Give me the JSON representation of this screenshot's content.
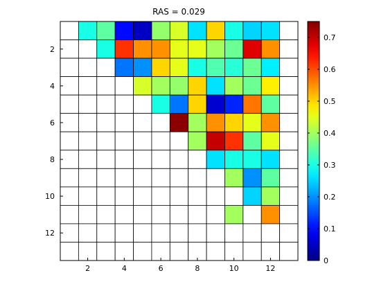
{
  "chart_data": {
    "type": "heatmap",
    "title": "RAS = 0.029",
    "n": 13,
    "x_ticks": [
      "2",
      "4",
      "6",
      "8",
      "10",
      "12"
    ],
    "y_ticks": [
      "2",
      "4",
      "6",
      "8",
      "10",
      "12"
    ],
    "colorbar_ticks": [
      "0",
      "0.1",
      "0.2",
      "0.3",
      "0.4",
      "0.5",
      "0.6",
      "0.7"
    ],
    "colorbar_range": [
      0,
      0.75
    ],
    "colormap": "jet",
    "grid": true,
    "empty_color": "#ffffff",
    "cells": [
      [
        null,
        0.3,
        0.35,
        0.1,
        0.05,
        0.39,
        0.44,
        0.26,
        0.5,
        0.3,
        0.25,
        0.26
      ],
      [
        null,
        null,
        0.3,
        0.62,
        0.55,
        0.55,
        0.45,
        0.45,
        0.4,
        0.36,
        0.68,
        0.55
      ],
      [
        null,
        null,
        null,
        0.18,
        0.2,
        0.5,
        0.45,
        0.3,
        0.34,
        0.31,
        0.36,
        0.27
      ],
      [
        null,
        null,
        null,
        null,
        0.44,
        0.4,
        0.39,
        0.5,
        0.26,
        0.4,
        0.36,
        0.48
      ],
      [
        null,
        null,
        null,
        null,
        null,
        0.3,
        0.18,
        0.5,
        0.06,
        0.12,
        0.57,
        0.35
      ],
      [
        null,
        null,
        null,
        null,
        null,
        null,
        0.74,
        0.4,
        0.55,
        0.5,
        0.45,
        0.55
      ],
      [
        null,
        null,
        null,
        null,
        null,
        null,
        null,
        0.4,
        0.7,
        0.62,
        0.35,
        0.45
      ],
      [
        null,
        null,
        null,
        null,
        null,
        null,
        null,
        null,
        0.26,
        0.3,
        0.3,
        0.26
      ],
      [
        null,
        null,
        null,
        null,
        null,
        null,
        null,
        null,
        null,
        0.4,
        0.2,
        0.35
      ],
      [
        null,
        null,
        null,
        null,
        null,
        null,
        null,
        null,
        null,
        null,
        0.25,
        0.4
      ],
      [
        null,
        null,
        null,
        null,
        null,
        null,
        null,
        null,
        null,
        0.4,
        null,
        0.55
      ],
      [
        null,
        null,
        null,
        null,
        null,
        null,
        null,
        null,
        null,
        null,
        null,
        null
      ]
    ]
  }
}
